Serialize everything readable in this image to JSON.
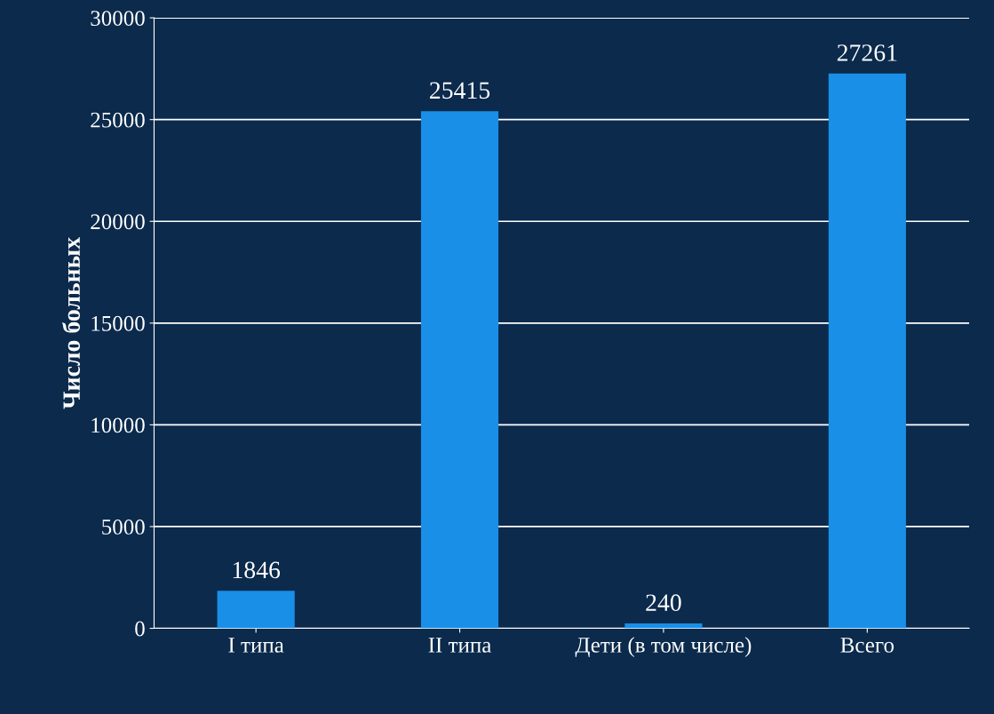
{
  "chart_data": {
    "type": "bar",
    "ylabel": "Число больных",
    "categories": [
      "I типа",
      "II типа",
      "Дети (в том числе)",
      "Всего"
    ],
    "values": [
      1846,
      25415,
      240,
      27261
    ],
    "color": "#1a8fe8",
    "ylim": [
      0,
      30000
    ],
    "yticks": [
      0,
      5000,
      10000,
      15000,
      20000,
      25000,
      30000
    ],
    "grid": "y",
    "data_labels": true
  }
}
